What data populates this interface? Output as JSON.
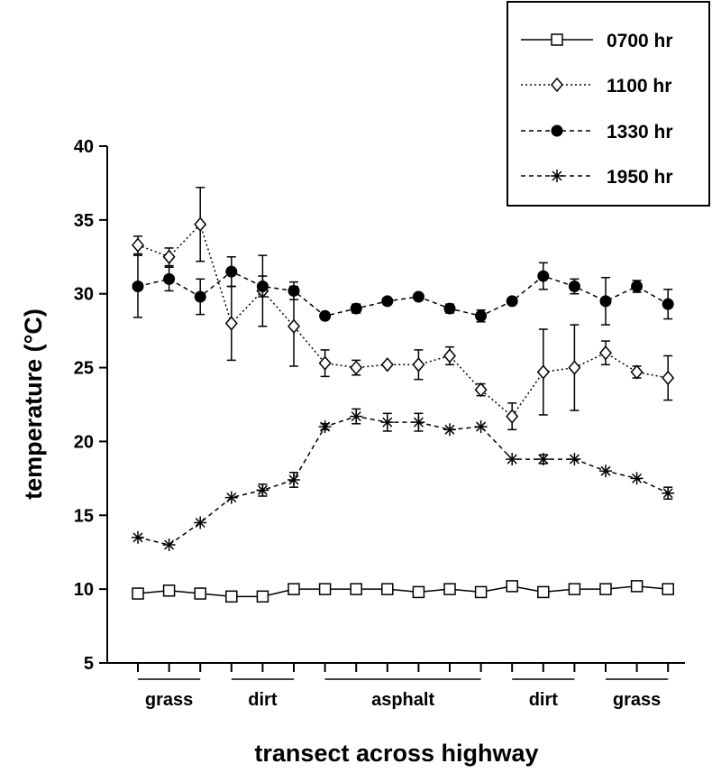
{
  "chart_data": {
    "type": "line",
    "title": "",
    "xlabel": "transect across highway",
    "ylabel": "temperature (°C)",
    "ylim": [
      5,
      40
    ],
    "yticks": [
      5,
      10,
      15,
      20,
      25,
      30,
      35,
      40
    ],
    "x": [
      1,
      2,
      3,
      4,
      5,
      6,
      7,
      8,
      9,
      10,
      11,
      12,
      13,
      14,
      15,
      16,
      17,
      18
    ],
    "surface_groups": [
      {
        "label": "grass",
        "from": 1,
        "to": 3
      },
      {
        "label": "dirt",
        "from": 4,
        "to": 6
      },
      {
        "label": "asphalt",
        "from": 7,
        "to": 12
      },
      {
        "label": "dirt",
        "from": 13,
        "to": 15
      },
      {
        "label": "grass",
        "from": 16,
        "to": 18
      }
    ],
    "grid": false,
    "legend_position": "top-right",
    "series": [
      {
        "name": "0700 hr",
        "marker": "open-square",
        "line_style": "solid",
        "color": "#000000",
        "values": [
          9.7,
          9.9,
          9.7,
          9.5,
          9.5,
          10.0,
          10.0,
          10.0,
          10.0,
          9.8,
          10.0,
          9.8,
          10.2,
          9.8,
          10.0,
          10.0,
          10.2,
          10.0
        ],
        "errors": [
          0,
          0,
          0,
          0,
          0,
          0,
          0,
          0,
          0,
          0,
          0,
          0,
          0,
          0,
          0,
          0,
          0,
          0
        ]
      },
      {
        "name": "1100 hr",
        "marker": "open-diamond",
        "line_style": "dotted",
        "color": "#000000",
        "values": [
          33.3,
          32.5,
          34.7,
          28.0,
          30.2,
          27.8,
          25.3,
          25.0,
          25.2,
          25.2,
          25.8,
          23.5,
          21.7,
          24.7,
          25.0,
          26.0,
          24.7,
          24.3
        ],
        "errors": [
          0.6,
          0.6,
          2.5,
          2.5,
          2.4,
          2.7,
          0.9,
          0.5,
          0,
          1.0,
          0.6,
          0.4,
          0.9,
          2.9,
          2.9,
          0.8,
          0.4,
          1.5
        ]
      },
      {
        "name": "1330 hr",
        "marker": "filled-circle",
        "line_style": "dashed",
        "color": "#000000",
        "values": [
          30.5,
          31.0,
          29.8,
          31.5,
          30.5,
          30.2,
          28.5,
          29.0,
          29.5,
          29.8,
          29.0,
          28.5,
          29.5,
          31.2,
          30.5,
          29.5,
          30.5,
          29.3
        ],
        "errors": [
          2.1,
          0.8,
          1.2,
          1.0,
          0.7,
          0.6,
          0,
          0.3,
          0,
          0,
          0.3,
          0.4,
          0,
          0.9,
          0.5,
          1.6,
          0.4,
          1.0
        ]
      },
      {
        "name": "1950 hr",
        "marker": "asterisk",
        "line_style": "dashed",
        "color": "#000000",
        "values": [
          13.5,
          13.0,
          14.5,
          16.2,
          16.7,
          17.4,
          21.0,
          21.7,
          21.3,
          21.3,
          20.8,
          21.0,
          18.8,
          18.8,
          18.8,
          18.0,
          17.5,
          16.5
        ],
        "errors": [
          0,
          0,
          0,
          0,
          0.4,
          0.5,
          0.2,
          0.5,
          0.6,
          0.6,
          0,
          0,
          0,
          0.3,
          0,
          0,
          0,
          0.4
        ]
      }
    ]
  }
}
